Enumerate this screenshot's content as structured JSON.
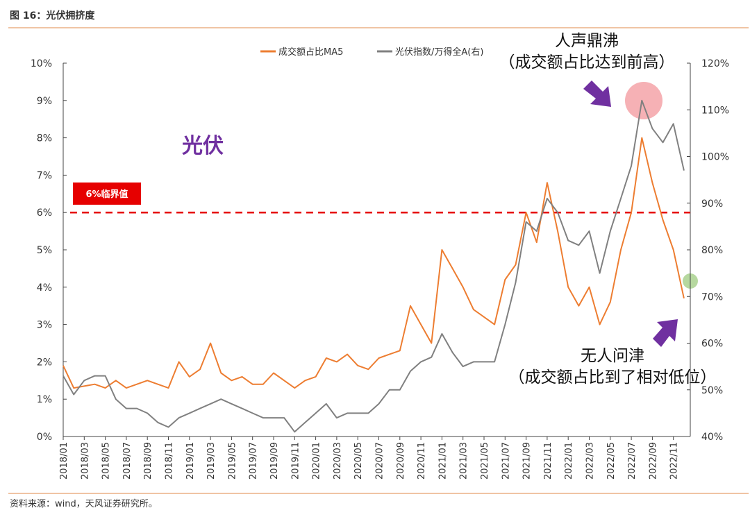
{
  "chart_data": {
    "type": "line",
    "title": "图 16：光伏拥挤度",
    "source": "资料来源：wind，天风证券研究所。",
    "categories": [
      "2018/01",
      null,
      "2018/03",
      null,
      "2018/05",
      null,
      "2018/07",
      null,
      "2018/09",
      null,
      "2018/11",
      null,
      "2019/01",
      null,
      "2019/03",
      null,
      "2019/05",
      null,
      "2019/07",
      null,
      "2019/09",
      null,
      "2019/11",
      null,
      "2020/01",
      null,
      "2020/03",
      null,
      "2020/05",
      null,
      "2020/07",
      null,
      "2020/09",
      null,
      "2020/11",
      null,
      "2021/01",
      null,
      "2021/03",
      null,
      "2021/05",
      null,
      "2021/07",
      null,
      "2021/09",
      null,
      "2021/11",
      null,
      "2022/01",
      null,
      "2022/03",
      null,
      "2022/05",
      null,
      "2022/07",
      null,
      "2022/09",
      null,
      "2022/11",
      null
    ],
    "series": [
      {
        "name": "成交额占比MA5",
        "color": "#ed7d31",
        "axis": "y",
        "values": [
          1.9,
          1.3,
          1.35,
          1.4,
          1.3,
          1.5,
          1.3,
          1.4,
          1.5,
          1.4,
          1.3,
          2.0,
          1.6,
          1.8,
          2.5,
          1.7,
          1.5,
          1.6,
          1.4,
          1.4,
          1.7,
          1.5,
          1.3,
          1.5,
          1.6,
          2.1,
          2.0,
          2.2,
          1.9,
          1.8,
          2.1,
          2.2,
          2.3,
          3.5,
          3.0,
          2.5,
          5.0,
          4.5,
          4.0,
          3.4,
          3.2,
          3.0,
          4.2,
          4.6,
          6.0,
          5.2,
          6.8,
          5.5,
          4.0,
          3.5,
          4.0,
          3.0,
          3.6,
          5.0,
          6.0,
          8.0,
          6.8,
          5.8,
          5.0,
          3.7
        ]
      },
      {
        "name": "光伏指数/万得全A(右)",
        "color": "#808080",
        "axis": "y2",
        "values": [
          53,
          49,
          52,
          53,
          53,
          48,
          46,
          46,
          45,
          43,
          42,
          44,
          45,
          46,
          47,
          48,
          47,
          46,
          45,
          44,
          44,
          44,
          41,
          43,
          45,
          47,
          44,
          45,
          45,
          45,
          47,
          50,
          50,
          54,
          56,
          57,
          62,
          58,
          55,
          56,
          56,
          56,
          64,
          73,
          86,
          84,
          91,
          88,
          82,
          81,
          84,
          75,
          84,
          91,
          98,
          112,
          106,
          103,
          107,
          97
        ]
      }
    ],
    "ylim": [
      0,
      10
    ],
    "yticks": [
      {
        "value": 0,
        "label": "0%"
      },
      {
        "value": 1,
        "label": "1%"
      },
      {
        "value": 2,
        "label": "2%"
      },
      {
        "value": 3,
        "label": "3%"
      },
      {
        "value": 4,
        "label": "4%"
      },
      {
        "value": 5,
        "label": "5%"
      },
      {
        "value": 6,
        "label": "6%"
      },
      {
        "value": 7,
        "label": "7%"
      },
      {
        "value": 8,
        "label": "8%"
      },
      {
        "value": 9,
        "label": "9%"
      },
      {
        "value": 10,
        "label": "10%"
      }
    ],
    "y2lim": [
      40,
      120
    ],
    "y2ticks": [
      {
        "value": 40,
        "label": "40%"
      },
      {
        "value": 50,
        "label": "50%"
      },
      {
        "value": 60,
        "label": "60%"
      },
      {
        "value": 70,
        "label": "70%"
      },
      {
        "value": 80,
        "label": "80%"
      },
      {
        "value": 90,
        "label": "90%"
      },
      {
        "value": 100,
        "label": "100%"
      },
      {
        "value": 110,
        "label": "110%"
      },
      {
        "value": 120,
        "label": "120%"
      }
    ],
    "threshold": 6,
    "threshold_label": "6%临界值",
    "threshold_color": "#e60000",
    "sector_label": "光伏",
    "annotations": [
      "人声鼎沸",
      "（成交额占比达到前高）",
      "无人问津",
      "（成交额占比到了相对低位）"
    ]
  }
}
